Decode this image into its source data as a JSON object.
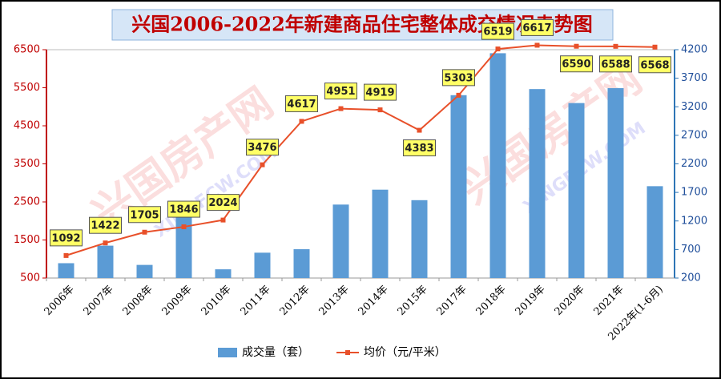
{
  "chart_data": {
    "type": "bar-line",
    "title": "兴国2006-2022年新建商品住宅整体成交情况走势图",
    "watermarks": [
      "兴国房产网",
      "XINGFCW.COM"
    ],
    "categories": [
      "2006年",
      "2007年",
      "2008年",
      "2009年",
      "2010年",
      "2011年",
      "2012年",
      "2013年",
      "2014年",
      "2015年",
      "2017年",
      "2018年",
      "2019年",
      "2020年",
      "2021年",
      "2022年(1-6月)"
    ],
    "series": [
      {
        "name": "成交量（套）",
        "type": "bar",
        "axis": "y2",
        "color": "#5b9bd5",
        "values": [
          460,
          767,
          430,
          1380,
          353,
          644,
          705,
          1487,
          1748,
          1564,
          3403,
          4138,
          3510,
          3265,
          3526,
          1809
        ]
      },
      {
        "name": "均价（元/平米）",
        "type": "line",
        "axis": "y",
        "color": "#e8502a",
        "value_labels_shown": true,
        "values": [
          1092,
          1422,
          1705,
          1846,
          2024,
          3476,
          4617,
          4951,
          4919,
          4383,
          5303,
          6519,
          6617,
          6590,
          6588,
          6568
        ]
      }
    ],
    "ylim": [
      500,
      6500
    ],
    "yticks": [
      500,
      1500,
      2500,
      3500,
      4500,
      5500,
      6500
    ],
    "y2lim": [
      200,
      4200
    ],
    "y2ticks": [
      200,
      700,
      1200,
      1700,
      2200,
      2700,
      3200,
      3700,
      4200
    ],
    "legend": "bottom"
  }
}
